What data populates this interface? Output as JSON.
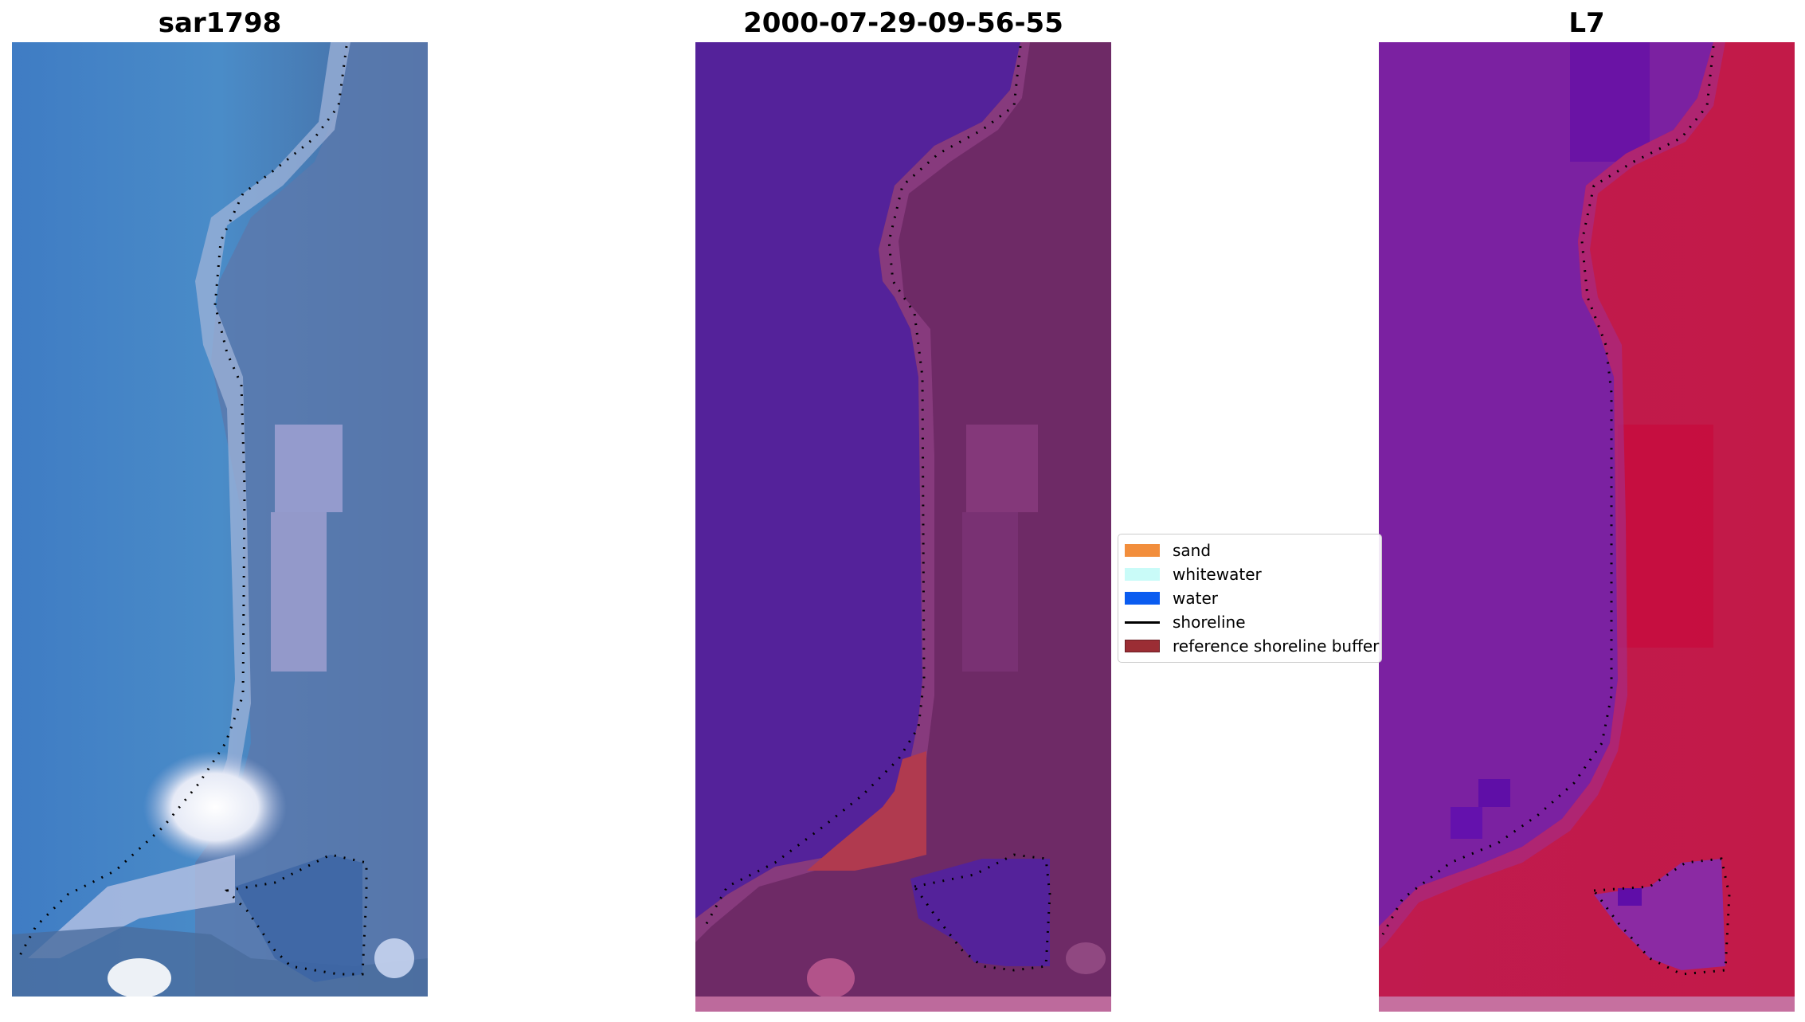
{
  "panels": [
    {
      "title": "sar1798"
    },
    {
      "title": "2000-07-29-09-56-55"
    },
    {
      "title": "L7"
    }
  ],
  "legend": {
    "items": [
      {
        "label": "sand",
        "color": "#f28e3c",
        "kind": "patch"
      },
      {
        "label": "whitewater",
        "color": "#c9fbf8",
        "kind": "patch"
      },
      {
        "label": "water",
        "color": "#0a5cf0",
        "kind": "patch"
      },
      {
        "label": "shoreline",
        "color": "#000000",
        "kind": "line"
      },
      {
        "label": "reference shoreline buffer",
        "color": "#9b2d34",
        "kind": "patch"
      }
    ]
  },
  "colors": {
    "rgb_water": "#4a86c4",
    "rgb_land": "#5d80b3",
    "class_water": "#54229a",
    "class_land": "#6e2a66",
    "class_highlight": "#b03a4f",
    "mndwi_water": "#7b21a1",
    "mndwi_land": "#c2174a"
  }
}
